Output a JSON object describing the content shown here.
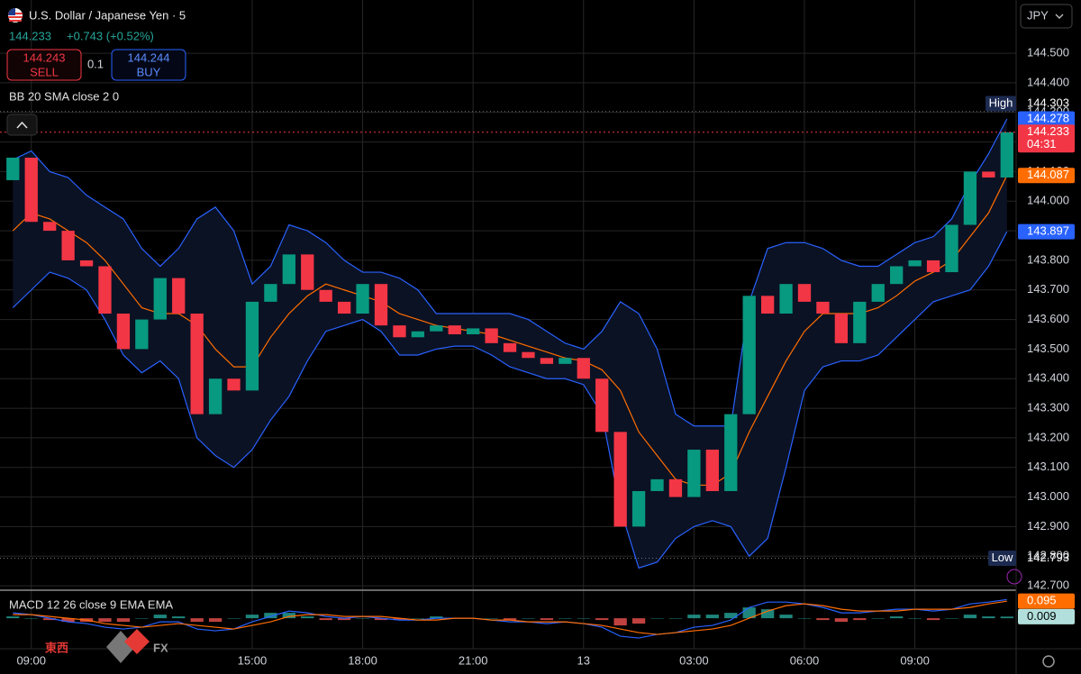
{
  "chart_data": [
    {
      "type": "candlestick",
      "title": "U.S. Dollar / Japanese Yen · 5",
      "last_price": 144.233,
      "change": "+0.743 (+0.52%)",
      "sell": {
        "price": 144.243,
        "label": "SELL"
      },
      "spread": 0.1,
      "buy": {
        "price": 144.244,
        "label": "BUY"
      },
      "indicator": "BB 20 SMA close 2 0",
      "currency": "JPY",
      "up_color": "#089981",
      "down_color": "#f23645",
      "x": [
        8.5,
        9,
        9.5,
        10,
        10.5,
        11,
        11.5,
        12,
        12.5,
        13,
        13.5,
        14,
        14.5,
        15,
        15.5,
        16,
        16.5,
        17,
        17.5,
        18,
        18.5,
        19,
        19.5,
        20,
        20.5,
        21,
        21.5,
        22,
        22.5,
        23,
        23.5,
        24,
        24.5,
        25,
        25.5,
        26,
        26.5,
        27,
        27.5,
        28,
        28.5,
        29,
        29.5,
        30,
        30.5,
        31,
        31.5,
        32,
        32.5,
        33,
        33.5,
        34,
        34.5,
        35,
        35.5
      ],
      "open": [
        144.071,
        144.147,
        143.93,
        143.9,
        143.8,
        143.78,
        143.62,
        143.5,
        143.6,
        143.74,
        143.62,
        143.28,
        143.4,
        143.36,
        143.66,
        143.72,
        143.82,
        143.7,
        143.66,
        143.62,
        143.72,
        143.58,
        143.54,
        143.56,
        143.58,
        143.55,
        143.57,
        143.52,
        143.49,
        143.47,
        143.45,
        143.47,
        143.4,
        143.22,
        142.9,
        143.02,
        143.06,
        143.0,
        143.16,
        143.02,
        143.28,
        143.68,
        143.62,
        143.72,
        143.66,
        143.62,
        143.52,
        143.66,
        143.72,
        143.78,
        143.8,
        143.76,
        143.92,
        144.1,
        144.08
      ],
      "high": {
        "label": "High",
        "value": 144.303
      },
      "low": {
        "label": "Low",
        "value": 142.793
      },
      "close": [
        144.147,
        143.93,
        143.9,
        143.8,
        143.78,
        143.62,
        143.5,
        143.6,
        143.74,
        143.62,
        143.28,
        143.4,
        143.36,
        143.66,
        143.72,
        143.82,
        143.7,
        143.66,
        143.62,
        143.72,
        143.58,
        143.54,
        143.56,
        143.58,
        143.55,
        143.57,
        143.52,
        143.49,
        143.47,
        143.45,
        143.47,
        143.4,
        143.22,
        142.9,
        143.02,
        143.06,
        143.0,
        143.16,
        143.02,
        143.28,
        143.68,
        143.62,
        143.72,
        143.66,
        143.62,
        143.52,
        143.66,
        143.72,
        143.78,
        143.8,
        143.76,
        143.92,
        144.1,
        144.08,
        144.233
      ],
      "bands": [
        {
          "color": "#2962ff",
          "values": [
            144.14,
            144.17,
            144.1,
            144.08,
            144.02,
            143.98,
            143.94,
            143.84,
            143.78,
            143.84,
            143.94,
            143.98,
            143.9,
            143.72,
            143.78,
            143.92,
            143.9,
            143.86,
            143.8,
            143.76,
            143.76,
            143.74,
            143.7,
            143.62,
            143.62,
            143.62,
            143.62,
            143.62,
            143.6,
            143.56,
            143.52,
            143.5,
            143.56,
            143.66,
            143.62,
            143.5,
            143.28,
            143.24,
            143.24,
            143.24,
            143.66,
            143.84,
            143.86,
            143.86,
            143.84,
            143.8,
            143.78,
            143.78,
            143.82,
            143.86,
            143.88,
            143.94,
            144.06,
            144.16,
            144.278
          ]
        },
        {
          "color": "#ff6d00",
          "values": [
            143.9,
            143.96,
            143.94,
            143.9,
            143.86,
            143.8,
            143.72,
            143.64,
            143.62,
            143.62,
            143.58,
            143.5,
            143.44,
            143.44,
            143.54,
            143.62,
            143.68,
            143.72,
            143.7,
            143.68,
            143.66,
            143.62,
            143.6,
            143.58,
            143.57,
            143.56,
            143.55,
            143.53,
            143.51,
            143.49,
            143.47,
            143.46,
            143.43,
            143.36,
            143.22,
            143.14,
            143.06,
            143.04,
            143.04,
            143.08,
            143.22,
            143.34,
            143.46,
            143.56,
            143.62,
            143.62,
            143.62,
            143.64,
            143.68,
            143.73,
            143.76,
            143.8,
            143.88,
            143.96,
            144.087
          ]
        },
        {
          "color": "#2962ff",
          "values": [
            143.64,
            143.7,
            143.76,
            143.74,
            143.7,
            143.6,
            143.48,
            143.42,
            143.46,
            143.4,
            143.2,
            143.14,
            143.1,
            143.16,
            143.26,
            143.34,
            143.46,
            143.56,
            143.58,
            143.6,
            143.56,
            143.48,
            143.48,
            143.5,
            143.51,
            143.51,
            143.48,
            143.44,
            143.42,
            143.4,
            143.4,
            143.38,
            143.28,
            142.96,
            142.76,
            142.78,
            142.86,
            142.9,
            142.92,
            142.9,
            142.8,
            142.86,
            143.1,
            143.36,
            143.44,
            143.46,
            143.46,
            143.48,
            143.54,
            143.6,
            143.66,
            143.68,
            143.7,
            143.78,
            143.897
          ]
        }
      ],
      "price_labels": [
        {
          "value": 144.278,
          "color": "#2962ff"
        },
        {
          "value": 144.087,
          "color": "#ff6d00"
        },
        {
          "value": 143.897,
          "color": "#2962ff"
        }
      ],
      "last": {
        "value": 144.233,
        "countdown": "04:31",
        "color": "#f23645"
      },
      "xlim": [
        8.15,
        35.75
      ],
      "xticks": [
        {
          "value": 9,
          "label": "09:00"
        },
        {
          "value": 15,
          "label": "15:00"
        },
        {
          "value": 18,
          "label": "18:00"
        },
        {
          "value": 21,
          "label": "21:00"
        },
        {
          "value": 24,
          "label": "13"
        },
        {
          "value": 27,
          "label": "03:00"
        },
        {
          "value": 30,
          "label": "06:00"
        },
        {
          "value": 33,
          "label": "09:00"
        }
      ],
      "ylim": [
        142.685,
        144.68
      ],
      "yticks": [
        {
          "value": 142.7,
          "label": "142.700"
        },
        {
          "value": 142.8,
          "label": "142.800"
        },
        {
          "value": 142.9,
          "label": "142.900"
        },
        {
          "value": 143,
          "label": "143.000"
        },
        {
          "value": 143.1,
          "label": "143.100"
        },
        {
          "value": 143.2,
          "label": "143.200"
        },
        {
          "value": 143.3,
          "label": "143.300"
        },
        {
          "value": 143.4,
          "label": "143.400"
        },
        {
          "value": 143.5,
          "label": "143.500"
        },
        {
          "value": 143.6,
          "label": "143.600"
        },
        {
          "value": 143.7,
          "label": "143.700"
        },
        {
          "value": 143.8,
          "label": "143.800"
        },
        {
          "value": 143.9,
          "label": "143.900"
        },
        {
          "value": 144,
          "label": "144.000"
        },
        {
          "value": 144.1,
          "label": "144.100"
        },
        {
          "value": 144.2,
          "label": "144.200"
        },
        {
          "value": 144.3,
          "label": "144.300"
        },
        {
          "value": 144.4,
          "label": "144.400"
        },
        {
          "value": 144.5,
          "label": "144.500"
        }
      ],
      "grid": true
    },
    {
      "type": "macd",
      "title": "MACD 12 26 close 9 EMA EMA",
      "ylim": [
        -0.17,
        0.146
      ],
      "series": [
        {
          "color": "#2962ff",
          "values": [
            0.03,
            0.02,
            0.0,
            -0.02,
            -0.03,
            -0.05,
            -0.06,
            -0.05,
            -0.02,
            -0.02,
            -0.06,
            -0.07,
            -0.06,
            -0.02,
            0.01,
            0.04,
            0.03,
            0.01,
            0.0,
            0.01,
            0.0,
            -0.01,
            -0.01,
            0.0,
            0.0,
            0.0,
            -0.01,
            -0.02,
            -0.02,
            -0.03,
            -0.02,
            -0.03,
            -0.05,
            -0.1,
            -0.11,
            -0.09,
            -0.08,
            -0.05,
            -0.04,
            -0.01,
            0.06,
            0.09,
            0.09,
            0.08,
            0.06,
            0.03,
            0.03,
            0.04,
            0.05,
            0.05,
            0.04,
            0.05,
            0.08,
            0.09,
            0.104
          ]
        },
        {
          "color": "#ff6d00",
          "values": [
            0.02,
            0.02,
            0.01,
            0.0,
            -0.01,
            -0.03,
            -0.04,
            -0.05,
            -0.04,
            -0.03,
            -0.04,
            -0.05,
            -0.06,
            -0.04,
            -0.02,
            0.01,
            0.02,
            0.02,
            0.01,
            0.01,
            0.01,
            0.0,
            -0.01,
            -0.01,
            0.0,
            0.0,
            -0.01,
            -0.01,
            -0.02,
            -0.02,
            -0.02,
            -0.03,
            -0.04,
            -0.06,
            -0.08,
            -0.09,
            -0.08,
            -0.07,
            -0.06,
            -0.04,
            0.0,
            0.04,
            0.07,
            0.08,
            0.07,
            0.05,
            0.04,
            0.04,
            0.04,
            0.05,
            0.05,
            0.05,
            0.06,
            0.08,
            0.095
          ]
        }
      ],
      "histogram": {
        "up_color": "#26a69a",
        "down_color": "#ef5350",
        "values": [
          0.01,
          0.0,
          -0.01,
          -0.02,
          -0.02,
          -0.02,
          -0.02,
          0.0,
          0.02,
          0.01,
          -0.02,
          -0.02,
          0.0,
          0.02,
          0.03,
          0.03,
          0.01,
          -0.01,
          -0.01,
          0.0,
          -0.01,
          -0.01,
          0.0,
          0.01,
          0.0,
          0.0,
          0.0,
          -0.01,
          0.0,
          -0.01,
          0.0,
          0.0,
          -0.01,
          -0.04,
          -0.03,
          0.0,
          0.0,
          0.02,
          0.02,
          0.03,
          0.06,
          0.05,
          0.02,
          0.0,
          -0.01,
          -0.02,
          -0.01,
          0.0,
          0.01,
          0.0,
          -0.01,
          0.0,
          0.02,
          0.01,
          0.009
        ]
      },
      "value_labels": [
        {
          "value": 0.095,
          "color": "#ff6d00"
        },
        {
          "value": 0.009,
          "color": "#b2dfdb"
        }
      ]
    }
  ],
  "watermark": {
    "brand": "東西",
    "suffix": "FX"
  }
}
